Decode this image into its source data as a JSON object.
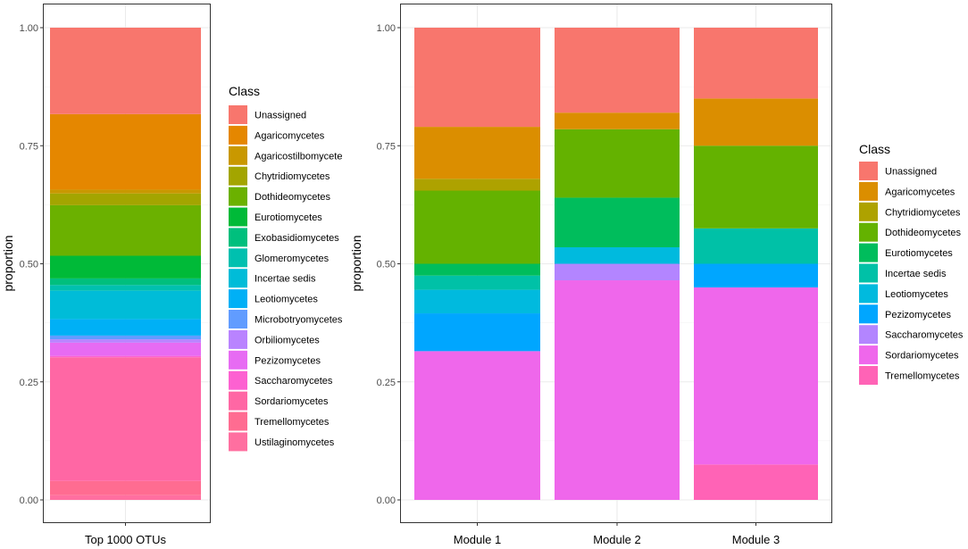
{
  "chart_data": [
    {
      "type": "bar",
      "stacked": true,
      "ylabel": "proportion",
      "ylim": [
        0,
        1
      ],
      "yticks": [
        "0.00",
        "0.25",
        "0.50",
        "0.75",
        "1.00"
      ],
      "categories": [
        "Top 1000 OTUs"
      ],
      "legend_title": "Class",
      "legend_position": "right",
      "series": [
        {
          "name": "Unassigned",
          "color": "#F8766D",
          "values": [
            0.183
          ]
        },
        {
          "name": "Agaricomycetes",
          "color": "#E58700",
          "values": [
            0.16
          ]
        },
        {
          "name": "Agaricostilbomycete",
          "color": "#C99800",
          "values": [
            0.008
          ]
        },
        {
          "name": "Chytridiomycetes",
          "color": "#A3A500",
          "values": [
            0.025
          ]
        },
        {
          "name": "Dothideomycetes",
          "color": "#6BB100",
          "values": [
            0.107
          ]
        },
        {
          "name": "Eurotiomycetes",
          "color": "#00BA38",
          "values": [
            0.048
          ]
        },
        {
          "name": "Exobasidiomycetes",
          "color": "#00BF7D",
          "values": [
            0.014
          ]
        },
        {
          "name": "Glomeromycetes",
          "color": "#00C0AF",
          "values": [
            0.012
          ]
        },
        {
          "name": "Incertae sedis",
          "color": "#00BCD8",
          "values": [
            0.06
          ]
        },
        {
          "name": "Leotiomycetes",
          "color": "#00B0F6",
          "values": [
            0.035
          ]
        },
        {
          "name": "Microbotryomycetes",
          "color": "#619CFF",
          "values": [
            0.008
          ]
        },
        {
          "name": "Orbiliomycetes",
          "color": "#B983FF",
          "values": [
            0.007
          ]
        },
        {
          "name": "Pezizomycetes",
          "color": "#E76BF3",
          "values": [
            0.028
          ]
        },
        {
          "name": "Saccharomycetes",
          "color": "#FD61D1",
          "values": [
            0.003
          ]
        },
        {
          "name": "Sordariomycetes",
          "color": "#FF67A4",
          "values": [
            0.262
          ]
        },
        {
          "name": "Tremellomycetes",
          "color": "#FF6C91",
          "values": [
            0.03
          ]
        },
        {
          "name": "Ustilaginomycetes",
          "color": "#FF6FA0",
          "values": [
            0.01
          ]
        }
      ]
    },
    {
      "type": "bar",
      "stacked": true,
      "ylabel": "proportion",
      "ylim": [
        0,
        1
      ],
      "yticks": [
        "0.00",
        "0.25",
        "0.50",
        "0.75",
        "1.00"
      ],
      "categories": [
        "Module 1",
        "Module 2",
        "Module 3"
      ],
      "legend_title": "Class",
      "legend_position": "right",
      "series": [
        {
          "name": "Unassigned",
          "color": "#F8766D",
          "values": [
            0.21,
            0.18,
            0.15
          ]
        },
        {
          "name": "Agaricomycetes",
          "color": "#DB8E00",
          "values": [
            0.11,
            0.035,
            0.1
          ]
        },
        {
          "name": "Chytridiomycetes",
          "color": "#AEA200",
          "values": [
            0.025,
            0.0,
            0.0
          ]
        },
        {
          "name": "Dothideomycetes",
          "color": "#64B200",
          "values": [
            0.155,
            0.145,
            0.175
          ]
        },
        {
          "name": "Eurotiomycetes",
          "color": "#00BD5C",
          "values": [
            0.025,
            0.105,
            0.0
          ]
        },
        {
          "name": "Incertae sedis",
          "color": "#00C1A7",
          "values": [
            0.03,
            0.0,
            0.075
          ]
        },
        {
          "name": "Leotiomycetes",
          "color": "#00BADE",
          "values": [
            0.05,
            0.035,
            0.0
          ]
        },
        {
          "name": "Pezizomycetes",
          "color": "#00A6FF",
          "values": [
            0.08,
            0.0,
            0.05
          ]
        },
        {
          "name": "Saccharomycetes",
          "color": "#B385FF",
          "values": [
            0.0,
            0.035,
            0.0
          ]
        },
        {
          "name": "Sordariomycetes",
          "color": "#EF67EB",
          "values": [
            0.315,
            0.465,
            0.375
          ]
        },
        {
          "name": "Tremellomycetes",
          "color": "#FF63B6",
          "values": [
            0.0,
            0.0,
            0.075
          ]
        }
      ]
    }
  ]
}
